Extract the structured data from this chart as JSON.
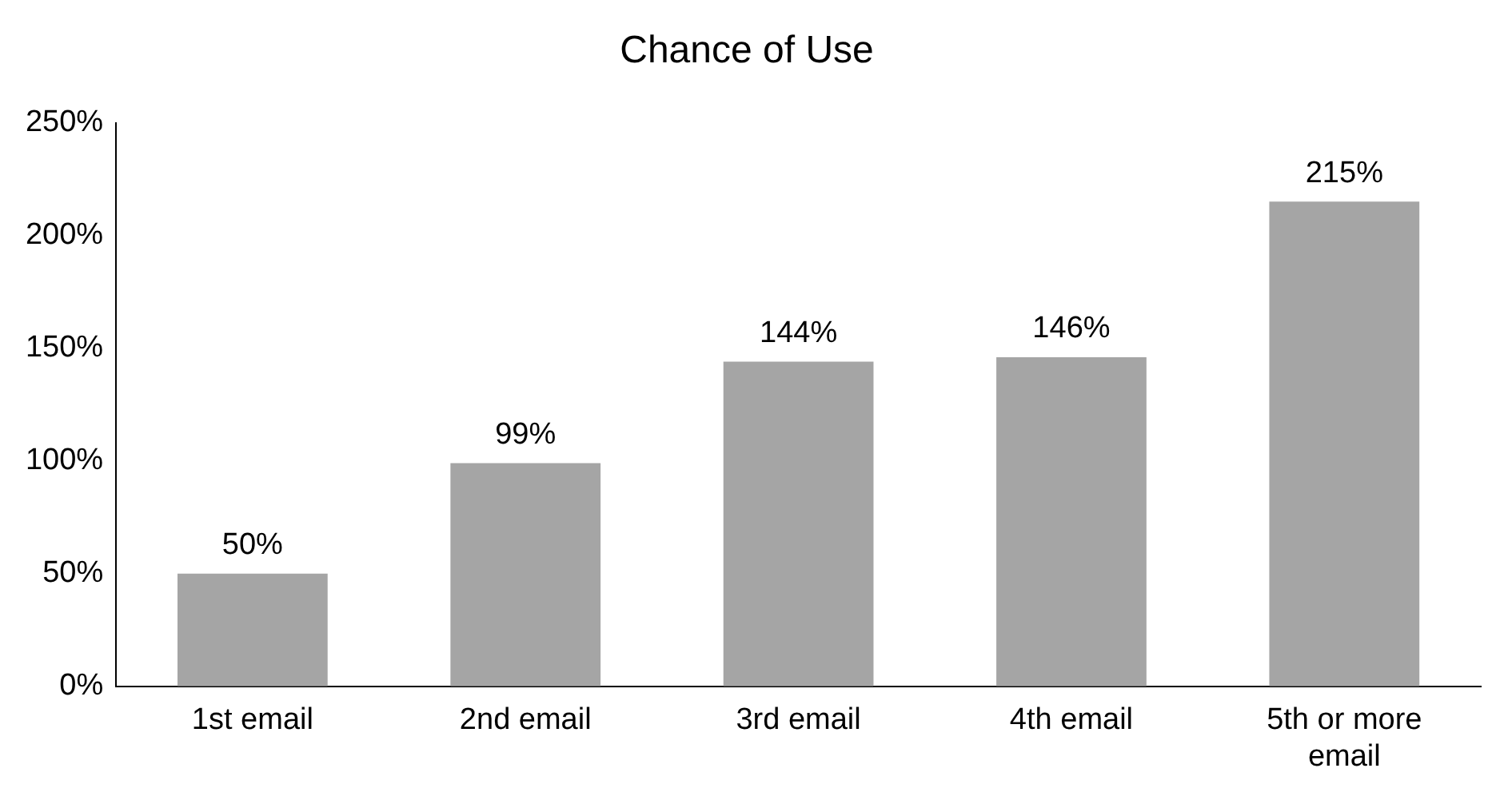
{
  "chart_data": {
    "type": "bar",
    "title": "Chance of Use",
    "categories": [
      "1st email",
      "2nd email",
      "3rd email",
      "4th email",
      "5th or more email"
    ],
    "values": [
      50,
      99,
      144,
      146,
      215
    ],
    "value_labels": [
      "50%",
      "99%",
      "144%",
      "146%",
      "215%"
    ],
    "color": "#a5a5a5",
    "ylim": [
      0,
      250
    ],
    "yticks": [
      {
        "value": 0,
        "label": "0%"
      },
      {
        "value": 50,
        "label": "50%"
      },
      {
        "value": 100,
        "label": "100%"
      },
      {
        "value": 150,
        "label": "150%"
      },
      {
        "value": 200,
        "label": "200%"
      },
      {
        "value": 250,
        "label": "250%"
      }
    ],
    "grid": false,
    "legend": false
  }
}
